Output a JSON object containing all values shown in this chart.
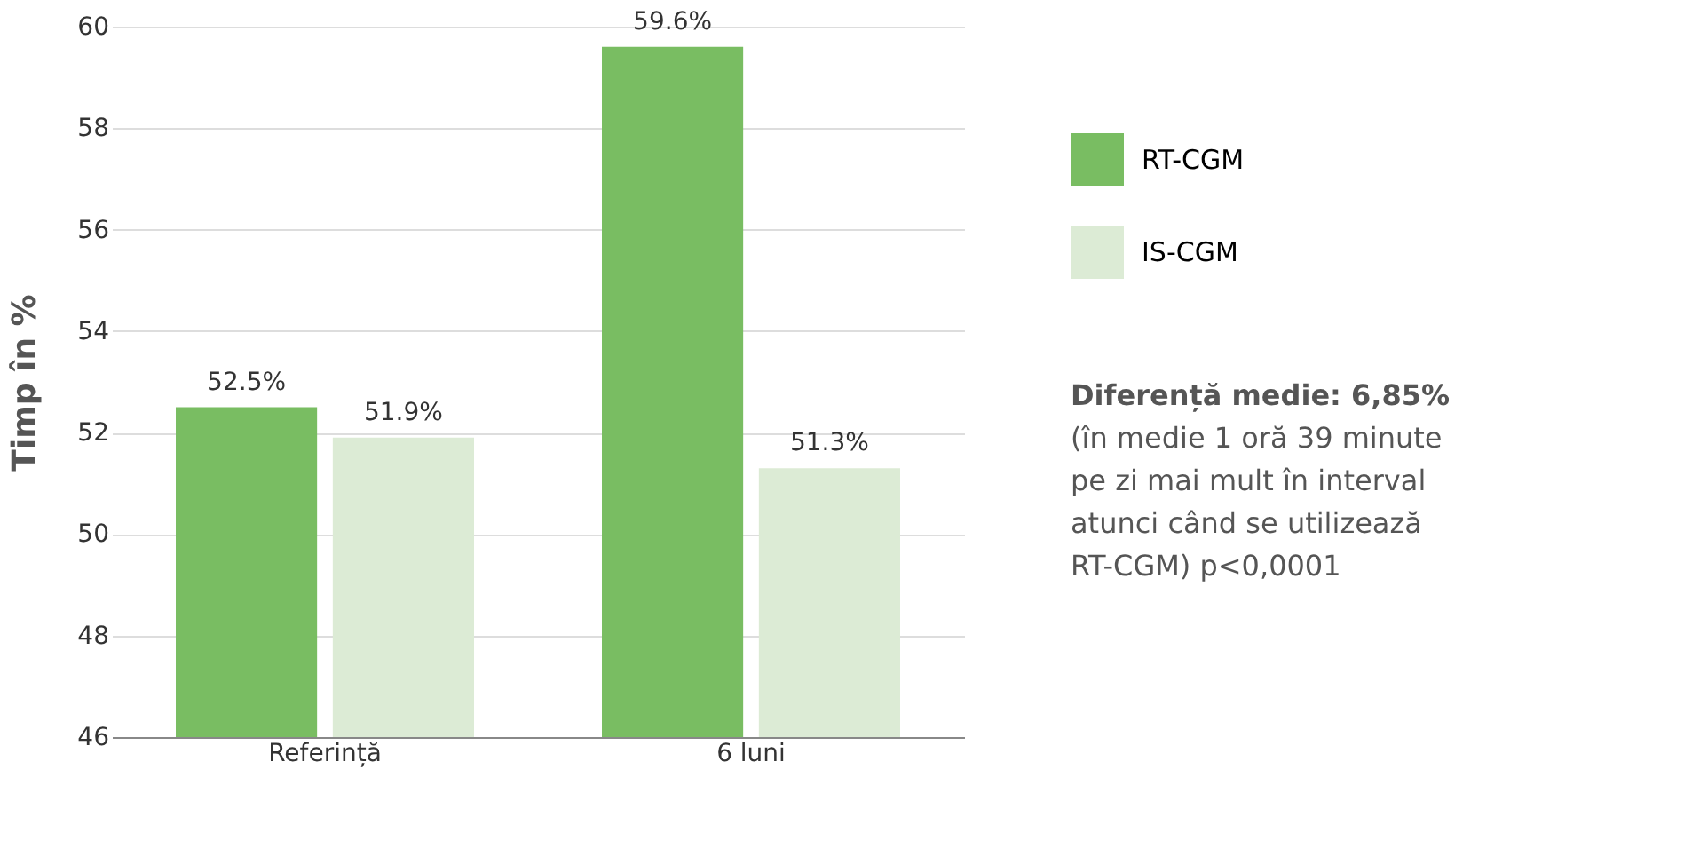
{
  "chart_data": {
    "type": "bar",
    "ylabel": "Timp în %",
    "categories": [
      "Referință",
      "6 luni"
    ],
    "series": [
      {
        "name": "RT-CGM",
        "color": "#79bd62",
        "values": [
          52.5,
          59.6
        ],
        "value_labels": [
          "52.5%",
          "59.6%"
        ]
      },
      {
        "name": "IS-CGM",
        "color": "#dcebd5",
        "values": [
          51.9,
          51.3
        ],
        "value_labels": [
          "51.9%",
          "51.3%"
        ]
      }
    ],
    "ylim": [
      46,
      60
    ],
    "yticks": [
      46,
      48,
      50,
      52,
      54,
      56,
      58,
      60
    ],
    "grid": "y",
    "legend": "right",
    "annotations": [
      "Diferență medie: 6,85%",
      "(în medie 1 oră 39 minute pe zi mai mult în interval atunci când se utilizează RT-CGM) p<0,0001"
    ]
  }
}
